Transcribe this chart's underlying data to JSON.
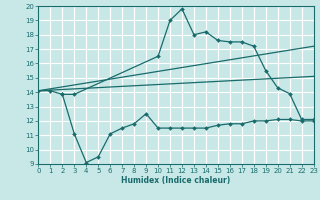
{
  "title": "",
  "xlabel": "Humidex (Indice chaleur)",
  "bg_color": "#c8e8e8",
  "grid_color": "#ffffff",
  "line_color": "#1a6b6b",
  "x_min": 0,
  "x_max": 23,
  "y_min": 9,
  "y_max": 20,
  "line1_x": [
    0,
    1,
    2,
    3,
    10,
    11,
    12,
    13,
    14,
    15,
    16,
    17,
    18,
    19,
    20,
    21,
    22,
    23
  ],
  "line1_y": [
    14.1,
    14.1,
    13.85,
    13.85,
    16.5,
    19.0,
    19.8,
    18.0,
    18.2,
    17.6,
    17.5,
    17.5,
    17.2,
    15.5,
    14.3,
    13.9,
    12.1,
    12.1
  ],
  "line2_x": [
    0,
    23
  ],
  "line2_y": [
    14.1,
    17.2
  ],
  "line3_x": [
    0,
    23
  ],
  "line3_y": [
    14.1,
    15.1
  ],
  "line4_x": [
    2,
    3,
    4,
    5,
    6,
    7,
    8,
    9,
    10,
    11,
    12,
    13,
    14,
    15,
    16,
    17,
    18,
    19,
    20,
    21,
    22,
    23
  ],
  "line4_y": [
    13.85,
    11.1,
    9.1,
    9.5,
    11.1,
    11.5,
    11.8,
    12.5,
    11.5,
    11.5,
    11.5,
    11.5,
    11.5,
    11.7,
    11.8,
    11.8,
    12.0,
    12.0,
    12.1,
    12.1,
    12.0,
    12.0
  ]
}
